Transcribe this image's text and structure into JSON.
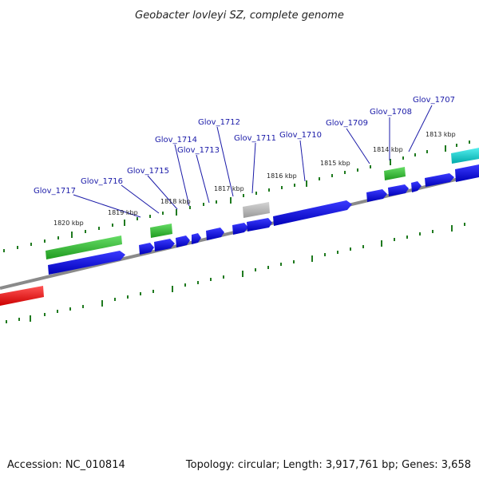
{
  "title": "Geobacter lovleyi SZ, complete genome",
  "footer": {
    "accession": "Accession: NC_010814",
    "summary": "Topology: circular; Length: 3,917,761 bp; Genes: 3,658"
  },
  "colors": {
    "backbone": "#8a8a8a",
    "tick": "#1f7a1f",
    "label": "#1a1aa8",
    "gene_forward": "#0000dd",
    "gene_reverse": "#33bb33",
    "gene_other": "#aaaaaa",
    "gene_red": "#ee1111",
    "gene_cyan": "#11cccc"
  },
  "gene_labels": [
    "Glov_1717",
    "Glov_1716",
    "Glov_1715",
    "Glov_1714",
    "Glov_1713",
    "Glov_1712",
    "Glov_1711",
    "Glov_1710",
    "Glov_1709",
    "Glov_1708",
    "Glov_1707"
  ],
  "tick_labels": [
    "1820 kbp",
    "1819 kbp",
    "1818 kbp",
    "1817 kbp",
    "1816 kbp",
    "1815 kbp",
    "1814 kbp",
    "1813 kbp"
  ]
}
